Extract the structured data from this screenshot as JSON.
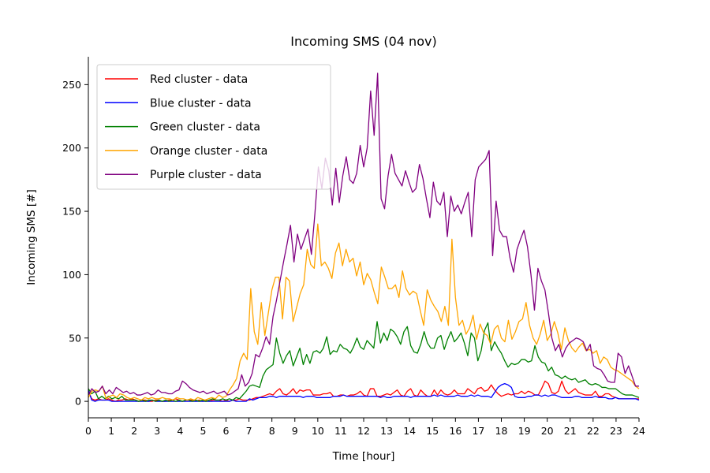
{
  "chart_data": {
    "type": "line",
    "title": "Incoming SMS (04 nov)",
    "xlabel": "Time [hour]",
    "ylabel": "Incoming SMS [#]",
    "xlim": [
      0,
      24
    ],
    "ylim": [
      -13,
      272
    ],
    "x_ticks": [
      "0",
      "1",
      "2",
      "3",
      "4",
      "5",
      "6",
      "7",
      "8",
      "9",
      "10",
      "11",
      "12",
      "13",
      "14",
      "15",
      "16",
      "17",
      "18",
      "19",
      "20",
      "21",
      "22",
      "23",
      "24"
    ],
    "y_ticks": [
      "0",
      "50",
      "100",
      "150",
      "200",
      "250"
    ],
    "grid": false,
    "legend_position": "upper-left",
    "x_step_hours": 0.1667,
    "series": [
      {
        "name": "Red cluster - data",
        "color": "#ff0000",
        "values": [
          8,
          2,
          1,
          2,
          1,
          1,
          2,
          1,
          0,
          1,
          1,
          2,
          1,
          2,
          1,
          0,
          1,
          1,
          0,
          0,
          1,
          1,
          0,
          0,
          1,
          1,
          2,
          1,
          0,
          1,
          1,
          1,
          0,
          1,
          0,
          1,
          0,
          1,
          1,
          1,
          0,
          1,
          0,
          1,
          1,
          2,
          1,
          1,
          1,
          2,
          3,
          3,
          4,
          5,
          6,
          5,
          8,
          10,
          6,
          5,
          7,
          10,
          6,
          9,
          8,
          9,
          9,
          5,
          5,
          5,
          6,
          6,
          7,
          4,
          4,
          5,
          5,
          4,
          5,
          5,
          6,
          8,
          5,
          4,
          10,
          10,
          4,
          4,
          5,
          6,
          5,
          7,
          9,
          5,
          4,
          8,
          10,
          5,
          4,
          9,
          6,
          4,
          4,
          9,
          5,
          9,
          6,
          5,
          6,
          9,
          6,
          6,
          6,
          10,
          8,
          6,
          10,
          11,
          8,
          9,
          13,
          9,
          6,
          4,
          5,
          6,
          5,
          6,
          6,
          8,
          6,
          8,
          7,
          5,
          5,
          10,
          16,
          14,
          7,
          6,
          8,
          16,
          9,
          6,
          8,
          10,
          7,
          6,
          5,
          5,
          5,
          8,
          4,
          4,
          6,
          6,
          4,
          3,
          2,
          2,
          2,
          2,
          2,
          2,
          2
        ]
      },
      {
        "name": "Blue cluster - data",
        "color": "#0000ff",
        "values": [
          9,
          1,
          0,
          1,
          1,
          1,
          1,
          0,
          0,
          0,
          0,
          0,
          0,
          0,
          0,
          0,
          0,
          0,
          0,
          1,
          0,
          0,
          0,
          0,
          0,
          0,
          0,
          0,
          0,
          0,
          0,
          0,
          0,
          0,
          0,
          0,
          0,
          0,
          0,
          0,
          0,
          0,
          0,
          1,
          0,
          0,
          0,
          0,
          2,
          1,
          2,
          3,
          3,
          3,
          4,
          4,
          3,
          4,
          4,
          4,
          4,
          4,
          4,
          4,
          3,
          4,
          4,
          4,
          3,
          3,
          3,
          3,
          3,
          4,
          4,
          4,
          5,
          4,
          4,
          4,
          4,
          4,
          4,
          4,
          4,
          4,
          4,
          3,
          4,
          3,
          3,
          4,
          4,
          4,
          4,
          4,
          3,
          4,
          4,
          4,
          4,
          4,
          4,
          5,
          4,
          5,
          4,
          4,
          4,
          4,
          5,
          4,
          4,
          4,
          5,
          4,
          5,
          4,
          4,
          4,
          3,
          7,
          11,
          13,
          14,
          13,
          11,
          4,
          3,
          3,
          3,
          4,
          4,
          5,
          5,
          4,
          5,
          4,
          5,
          5,
          4,
          3,
          3,
          3,
          3,
          4,
          4,
          3,
          3,
          3,
          3,
          4,
          3,
          3,
          3,
          2,
          2,
          3,
          2,
          2,
          2,
          2,
          2,
          2,
          1
        ]
      },
      {
        "name": "Green cluster - data",
        "color": "#008000",
        "values": [
          10,
          6,
          8,
          2,
          4,
          2,
          4,
          2,
          3,
          2,
          4,
          1,
          1,
          1,
          1,
          0,
          1,
          0,
          1,
          1,
          0,
          1,
          0,
          1,
          0,
          1,
          0,
          1,
          0,
          1,
          1,
          0,
          1,
          0,
          1,
          0,
          1,
          2,
          1,
          1,
          2,
          1,
          2,
          1,
          3,
          2,
          5,
          8,
          12,
          13,
          12,
          11,
          20,
          25,
          27,
          29,
          50,
          38,
          30,
          36,
          40,
          28,
          35,
          42,
          29,
          37,
          30,
          39,
          40,
          38,
          42,
          51,
          37,
          40,
          39,
          45,
          42,
          41,
          38,
          43,
          50,
          43,
          41,
          48,
          45,
          42,
          63,
          46,
          54,
          48,
          57,
          55,
          51,
          45,
          55,
          59,
          44,
          39,
          38,
          45,
          55,
          46,
          42,
          42,
          50,
          52,
          41,
          49,
          55,
          47,
          50,
          54,
          46,
          36,
          54,
          50,
          32,
          40,
          56,
          62,
          40,
          47,
          42,
          38,
          32,
          27,
          30,
          29,
          30,
          33,
          33,
          31,
          32,
          44,
          35,
          31,
          30,
          24,
          27,
          21,
          20,
          18,
          20,
          18,
          17,
          18,
          15,
          16,
          17,
          14,
          13,
          14,
          13,
          11,
          11,
          10,
          10,
          10,
          8,
          6,
          5,
          5,
          5,
          4,
          3
        ]
      },
      {
        "name": "Orange cluster - data",
        "color": "#ffa500",
        "values": [
          3,
          8,
          9,
          8,
          12,
          2,
          4,
          5,
          3,
          6,
          5,
          3,
          2,
          3,
          2,
          1,
          3,
          2,
          3,
          2,
          2,
          3,
          2,
          2,
          1,
          3,
          2,
          2,
          1,
          2,
          1,
          3,
          2,
          1,
          2,
          3,
          2,
          5,
          3,
          4,
          9,
          13,
          18,
          32,
          38,
          33,
          89,
          55,
          45,
          78,
          52,
          70,
          88,
          98,
          98,
          65,
          98,
          95,
          63,
          74,
          85,
          92,
          120,
          108,
          105,
          140,
          107,
          110,
          105,
          97,
          117,
          125,
          107,
          120,
          110,
          113,
          99,
          110,
          92,
          101,
          96,
          86,
          77,
          106,
          98,
          89,
          89,
          92,
          82,
          103,
          89,
          84,
          87,
          85,
          72,
          60,
          88,
          80,
          75,
          71,
          63,
          75,
          60,
          128,
          82,
          60,
          64,
          53,
          58,
          68,
          49,
          61,
          54,
          52,
          45,
          57,
          60,
          50,
          47,
          64,
          49,
          55,
          63,
          65,
          78,
          60,
          50,
          45,
          53,
          64,
          48,
          53,
          63,
          54,
          41,
          58,
          48,
          42,
          39,
          43,
          46,
          40,
          41,
          38,
          40,
          30,
          35,
          33,
          27,
          25,
          24,
          22,
          20,
          18,
          16,
          12,
          10
        ]
      },
      {
        "name": "Purple cluster - data",
        "color": "#800080",
        "values": [
          5,
          10,
          7,
          8,
          12,
          6,
          9,
          6,
          11,
          9,
          7,
          8,
          6,
          7,
          5,
          5,
          6,
          7,
          5,
          6,
          9,
          7,
          7,
          6,
          6,
          8,
          9,
          16,
          14,
          11,
          9,
          8,
          7,
          8,
          6,
          7,
          8,
          6,
          7,
          8,
          5,
          6,
          8,
          10,
          21,
          12,
          15,
          22,
          37,
          35,
          42,
          51,
          45,
          67,
          80,
          95,
          110,
          124,
          139,
          110,
          132,
          120,
          128,
          136,
          116,
          148,
          185,
          168,
          192,
          182,
          155,
          184,
          157,
          178,
          193,
          175,
          172,
          180,
          202,
          185,
          200,
          245,
          210,
          259,
          160,
          152,
          178,
          195,
          180,
          175,
          170,
          182,
          173,
          165,
          168,
          187,
          176,
          160,
          145,
          173,
          158,
          155,
          165,
          130,
          162,
          150,
          155,
          148,
          157,
          165,
          130,
          175,
          185,
          188,
          191,
          198,
          115,
          158,
          135,
          130,
          130,
          113,
          102,
          120,
          128,
          135,
          122,
          100,
          72,
          105,
          95,
          88,
          70,
          50,
          40,
          45,
          35,
          42,
          46,
          48,
          50,
          49,
          47,
          40,
          45,
          28,
          26,
          25,
          21,
          16,
          15,
          15,
          38,
          35,
          22,
          28,
          20,
          12,
          12
        ]
      }
    ]
  }
}
